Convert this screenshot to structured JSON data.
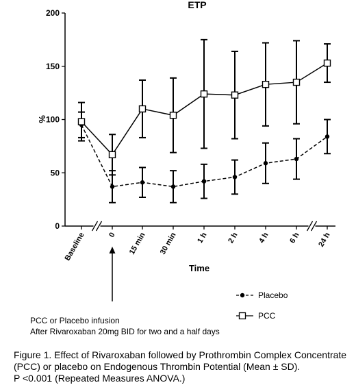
{
  "chart_data": {
    "type": "line",
    "title": "ETP",
    "xlabel": "Time",
    "ylabel": "%",
    "ylim": [
      0,
      200
    ],
    "yticks": [
      0,
      50,
      100,
      150,
      200
    ],
    "categories": [
      "Baseline",
      "0",
      "15 min",
      "30 min",
      "1 h",
      "2 h",
      "4 h",
      "6 h",
      "24 h"
    ],
    "axis_breaks_after": [
      "Baseline",
      "6 h"
    ],
    "series": [
      {
        "name": "Placebo",
        "marker": "filled-circle",
        "line_style": "dashed",
        "values": [
          95,
          37,
          41,
          37,
          42,
          46,
          59,
          63,
          84
        ],
        "sd": [
          12,
          15,
          14,
          15,
          16,
          16,
          19,
          19,
          16
        ]
      },
      {
        "name": "PCC",
        "marker": "open-square",
        "line_style": "solid",
        "values": [
          98,
          67,
          110,
          104,
          124,
          123,
          133,
          135,
          153
        ],
        "sd": [
          18,
          19,
          27,
          35,
          51,
          41,
          39,
          39,
          18
        ]
      }
    ],
    "legend_position": "bottom-right",
    "annotation": {
      "arrow_at": "0",
      "lines": [
        "PCC or Placebo infusion",
        "After Rivaroxaban 20mg BID for two and a half days"
      ]
    }
  },
  "caption": {
    "lines": [
      "Figure 1. Effect of Rivaroxaban followed by Prothrombin Complex Concentrate",
      "(PCC) or placebo on Endogenous Thrombin Potential (Mean ± SD).",
      "P <0.001 (Repeated Measures ANOVA.)"
    ]
  }
}
